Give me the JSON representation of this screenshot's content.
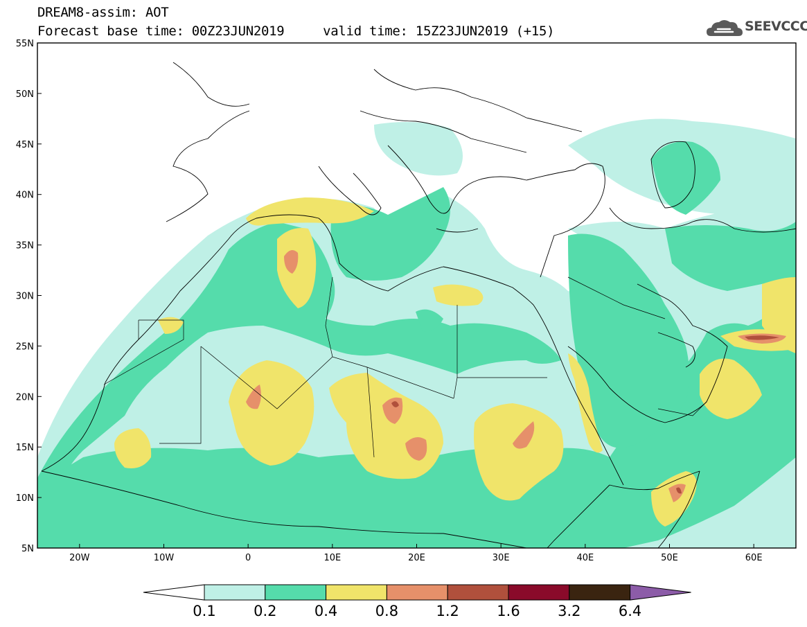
{
  "header": {
    "line1": "DREAM8-assim: AOT",
    "line2": "Forecast base time: 00Z23JUN2019     valid time: 15Z23JUN2019 (+15)",
    "logo_text": "SEEVCCC"
  },
  "chart_data": {
    "type": "map-contour",
    "variable": "AOT",
    "model": "DREAM8-assim",
    "base_time": "00Z23JUN2019",
    "valid_time": "15Z23JUN2019",
    "lead": "+15",
    "lon_range": [
      -25,
      65
    ],
    "lat_range": [
      5,
      55
    ],
    "x_ticks": [
      "20W",
      "10W",
      "0",
      "10E",
      "20E",
      "30E",
      "40E",
      "50E",
      "60E"
    ],
    "x_tick_values": [
      -20,
      -10,
      0,
      10,
      20,
      30,
      40,
      50,
      60
    ],
    "y_ticks": [
      "5N",
      "10N",
      "15N",
      "20N",
      "25N",
      "30N",
      "35N",
      "40N",
      "45N",
      "50N",
      "55N"
    ],
    "y_tick_values": [
      5,
      10,
      15,
      20,
      25,
      30,
      35,
      40,
      45,
      50,
      55
    ],
    "colorbar": {
      "levels": [
        "0.1",
        "0.2",
        "0.4",
        "0.8",
        "1.2",
        "1.6",
        "3.2",
        "6.4"
      ],
      "colors": [
        "#bff0e6",
        "#55dcab",
        "#f0e46a",
        "#e6906a",
        "#b0503c",
        "#8a0a2a",
        "#3a2410",
        "#8c5ca8"
      ],
      "under_color": "#ffffff"
    }
  }
}
